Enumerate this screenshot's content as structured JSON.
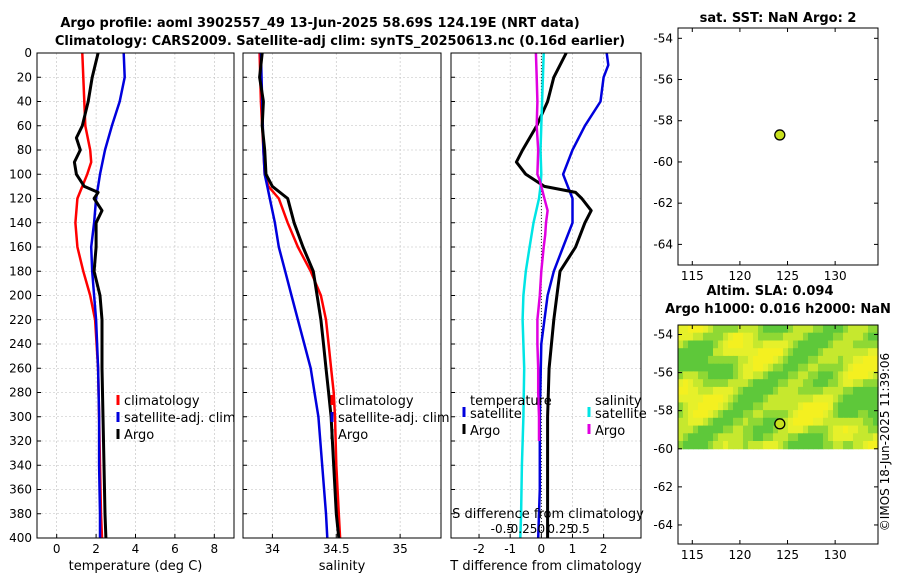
{
  "titles": {
    "line1": "Argo profile: aoml 3902557_49 13-Jun-2025 58.69S 124.19E (NRT data)",
    "line2": "Climatology: CARS2009. Satellite-adj clim: synTS_20250613.nc (0.16d earlier)",
    "sst_map": "sat. SST: NaN Argo: 2",
    "sla_map1": "Altim. SLA: 0.094",
    "sla_map2": "Argo h1000: 0.016 h2000: NaN",
    "stamp": "©IMOS 18-Jun-2025 11:39:06"
  },
  "colors": {
    "climatology": "#ff0000",
    "satellite": "#0000dd",
    "argo": "#000000",
    "sat_s": "#00e5e5",
    "sal_s": "#e000e0",
    "grid": "#bdbdbd"
  },
  "chart_data": [
    {
      "type": "line",
      "name": "temperature",
      "xlabel": "temperature (deg C)",
      "xlim": [
        -1,
        9
      ],
      "xticks": [
        0,
        2,
        4,
        6,
        8
      ],
      "xtick_labels": [
        "0",
        "2",
        "4",
        "6",
        "8"
      ],
      "ylim": [
        0,
        400
      ],
      "yticks": [
        0,
        20,
        40,
        60,
        80,
        100,
        120,
        140,
        160,
        180,
        200,
        220,
        240,
        260,
        280,
        300,
        320,
        340,
        360,
        380,
        400
      ],
      "legend": [
        "climatology",
        "satellite-adj. clim",
        "Argo"
      ],
      "series": [
        {
          "name": "climatology",
          "color": "#ff0000",
          "depth": [
            0,
            20,
            40,
            60,
            80,
            90,
            100,
            110,
            120,
            140,
            160,
            180,
            200,
            220,
            260,
            300,
            340,
            380,
            400
          ],
          "values": [
            1.3,
            1.35,
            1.4,
            1.45,
            1.7,
            1.75,
            1.55,
            1.3,
            1.05,
            0.95,
            1.05,
            1.35,
            1.7,
            1.95,
            2.1,
            2.15,
            2.2,
            2.25,
            2.3
          ]
        },
        {
          "name": "satellite-adj. clim",
          "color": "#0000dd",
          "depth": [
            0,
            20,
            40,
            60,
            80,
            100,
            110,
            120,
            140,
            160,
            180,
            200,
            220,
            260,
            300,
            340,
            380,
            400
          ],
          "values": [
            3.4,
            3.45,
            3.2,
            2.8,
            2.45,
            2.2,
            2.1,
            2.0,
            1.9,
            1.75,
            1.8,
            1.9,
            2.0,
            2.1,
            2.15,
            2.15,
            2.2,
            2.2
          ]
        },
        {
          "name": "Argo",
          "color": "#000000",
          "depth": [
            0,
            20,
            40,
            60,
            70,
            80,
            90,
            100,
            110,
            115,
            120,
            130,
            140,
            160,
            180,
            200,
            220,
            260,
            300,
            340,
            380,
            400
          ],
          "values": [
            2.1,
            1.8,
            1.6,
            1.3,
            1.0,
            1.2,
            0.9,
            1.0,
            1.4,
            2.1,
            1.9,
            2.3,
            2.0,
            2.0,
            1.9,
            2.2,
            2.3,
            2.3,
            2.35,
            2.4,
            2.45,
            2.5
          ]
        }
      ]
    },
    {
      "type": "line",
      "name": "salinity",
      "xlabel": "salinity",
      "xlim": [
        33.77,
        35.32
      ],
      "xticks": [
        34,
        34.5,
        35
      ],
      "xtick_labels": [
        "34",
        "34.5",
        "35"
      ],
      "ylim": [
        0,
        400
      ],
      "legend": [
        "climatology",
        "satellite-adj. clim",
        "Argo"
      ],
      "series": [
        {
          "name": "climatology",
          "color": "#ff0000",
          "depth": [
            0,
            40,
            80,
            100,
            110,
            120,
            140,
            160,
            180,
            200,
            220,
            240,
            260,
            280,
            300,
            340,
            380,
            400
          ],
          "values": [
            33.9,
            33.91,
            33.93,
            33.94,
            33.97,
            34.05,
            34.12,
            34.2,
            34.3,
            34.38,
            34.42,
            34.44,
            34.46,
            34.48,
            34.49,
            34.5,
            34.52,
            34.53
          ]
        },
        {
          "name": "satellite-adj. clim",
          "color": "#0000dd",
          "depth": [
            0,
            40,
            80,
            100,
            110,
            120,
            140,
            160,
            180,
            200,
            220,
            240,
            260,
            280,
            300,
            340,
            380,
            400
          ],
          "values": [
            33.91,
            33.92,
            33.93,
            33.94,
            33.96,
            33.98,
            34.02,
            34.05,
            34.1,
            34.15,
            34.2,
            34.25,
            34.3,
            34.33,
            34.36,
            34.39,
            34.42,
            34.43
          ]
        },
        {
          "name": "Argo",
          "color": "#000000",
          "depth": [
            0,
            20,
            40,
            60,
            80,
            100,
            110,
            120,
            140,
            160,
            180,
            200,
            220,
            240,
            260,
            280,
            300,
            340,
            380,
            400
          ],
          "values": [
            33.92,
            33.9,
            33.93,
            33.92,
            33.94,
            33.95,
            34.0,
            34.12,
            34.17,
            34.24,
            34.32,
            34.35,
            34.38,
            34.4,
            34.42,
            34.44,
            34.46,
            34.48,
            34.5,
            34.52
          ]
        }
      ]
    },
    {
      "type": "line",
      "name": "difference from climatology",
      "xlabel": "T difference from climatology",
      "xlim": [
        -2.9,
        3.2
      ],
      "xticks": [
        -2,
        -1,
        0,
        1,
        2
      ],
      "xtick_labels": [
        "-2",
        "-1",
        "0",
        "1",
        "2"
      ],
      "x2label": "S difference from climatology",
      "x2ticks": [
        -0.5,
        -0.25,
        0,
        0.25,
        0.5
      ],
      "x2tick_labels": [
        "-0.5",
        "-0.25",
        "0",
        "0.25",
        "0.5"
      ],
      "ylim": [
        0,
        400
      ],
      "legend_temperature_title": "temperature",
      "legend_salinity_title": "salinity",
      "legend_items": [
        "satellite",
        "Argo",
        "satellite",
        "Argo"
      ],
      "series": [
        {
          "name": "T satellite",
          "color": "#0000dd",
          "depth": [
            0,
            10,
            20,
            40,
            60,
            80,
            100,
            120,
            140,
            160,
            180,
            200,
            240,
            300,
            360,
            400
          ],
          "values": [
            2.1,
            2.15,
            2.0,
            1.9,
            1.4,
            1.0,
            0.7,
            1.0,
            1.0,
            0.7,
            0.4,
            0.2,
            0.0,
            -0.05,
            -0.05,
            -0.1
          ]
        },
        {
          "name": "T Argo",
          "color": "#000000",
          "depth": [
            0,
            20,
            40,
            60,
            80,
            90,
            100,
            110,
            115,
            120,
            130,
            140,
            160,
            180,
            200,
            220,
            260,
            300,
            340,
            380,
            400
          ],
          "values": [
            0.8,
            0.4,
            0.2,
            -0.15,
            -0.6,
            -0.8,
            -0.5,
            0.1,
            1.1,
            1.3,
            1.6,
            1.4,
            1.1,
            0.6,
            0.5,
            0.4,
            0.25,
            0.2,
            0.2,
            0.2,
            0.2
          ]
        },
        {
          "name": "S satellite",
          "color": "#00e5e5",
          "depth": [
            0,
            20,
            40,
            60,
            80,
            100,
            110,
            120,
            140,
            160,
            180,
            200,
            220,
            260,
            300,
            340,
            380,
            400
          ],
          "values": [
            0.03,
            0.02,
            0.01,
            0.0,
            -0.01,
            0.0,
            -0.01,
            -0.03,
            -0.1,
            -0.15,
            -0.2,
            -0.23,
            -0.24,
            -0.22,
            -0.23,
            -0.25,
            -0.26,
            -0.27
          ]
        },
        {
          "name": "S Argo",
          "color": "#e000e0",
          "depth": [
            0,
            20,
            40,
            60,
            80,
            100,
            105,
            110,
            120,
            130,
            140,
            150,
            160,
            180,
            200,
            220,
            240,
            260,
            280,
            300,
            320
          ],
          "values": [
            -0.07,
            -0.06,
            -0.05,
            -0.06,
            -0.04,
            -0.05,
            -0.02,
            0.0,
            0.04,
            0.08,
            0.06,
            0.05,
            0.03,
            0.0,
            -0.02,
            -0.05,
            -0.05,
            -0.04,
            -0.04,
            -0.03,
            -0.03
          ]
        }
      ]
    },
    {
      "type": "scatter",
      "name": "sst-map",
      "xlim": [
        113.5,
        134.5
      ],
      "ylim": [
        -65,
        -53.5
      ],
      "xticks": [
        115,
        120,
        125,
        130
      ],
      "xtick_labels": [
        "115",
        "120",
        "125",
        "130"
      ],
      "yticks": [
        -54,
        -56,
        -58,
        -60,
        -62,
        -64
      ],
      "ytick_labels": [
        "-54",
        "-56",
        "-58",
        "-60",
        "-62",
        "-64"
      ],
      "points": [
        {
          "lon": 124.19,
          "lat": -58.69
        }
      ]
    },
    {
      "type": "heatmap",
      "name": "sla-map",
      "xlim": [
        113.5,
        134.5
      ],
      "ylim": [
        -65,
        -53.5
      ],
      "xticks": [
        115,
        120,
        125,
        130
      ],
      "xtick_labels": [
        "115",
        "120",
        "125",
        "130"
      ],
      "yticks": [
        -54,
        -56,
        -58,
        -60,
        -62,
        -64
      ],
      "ytick_labels": [
        "-54",
        "-56",
        "-58",
        "-60",
        "-62",
        "-64"
      ],
      "field_lat_range": [
        -60,
        -53.5
      ],
      "points": [
        {
          "lon": 124.19,
          "lat": -58.69
        }
      ]
    }
  ]
}
